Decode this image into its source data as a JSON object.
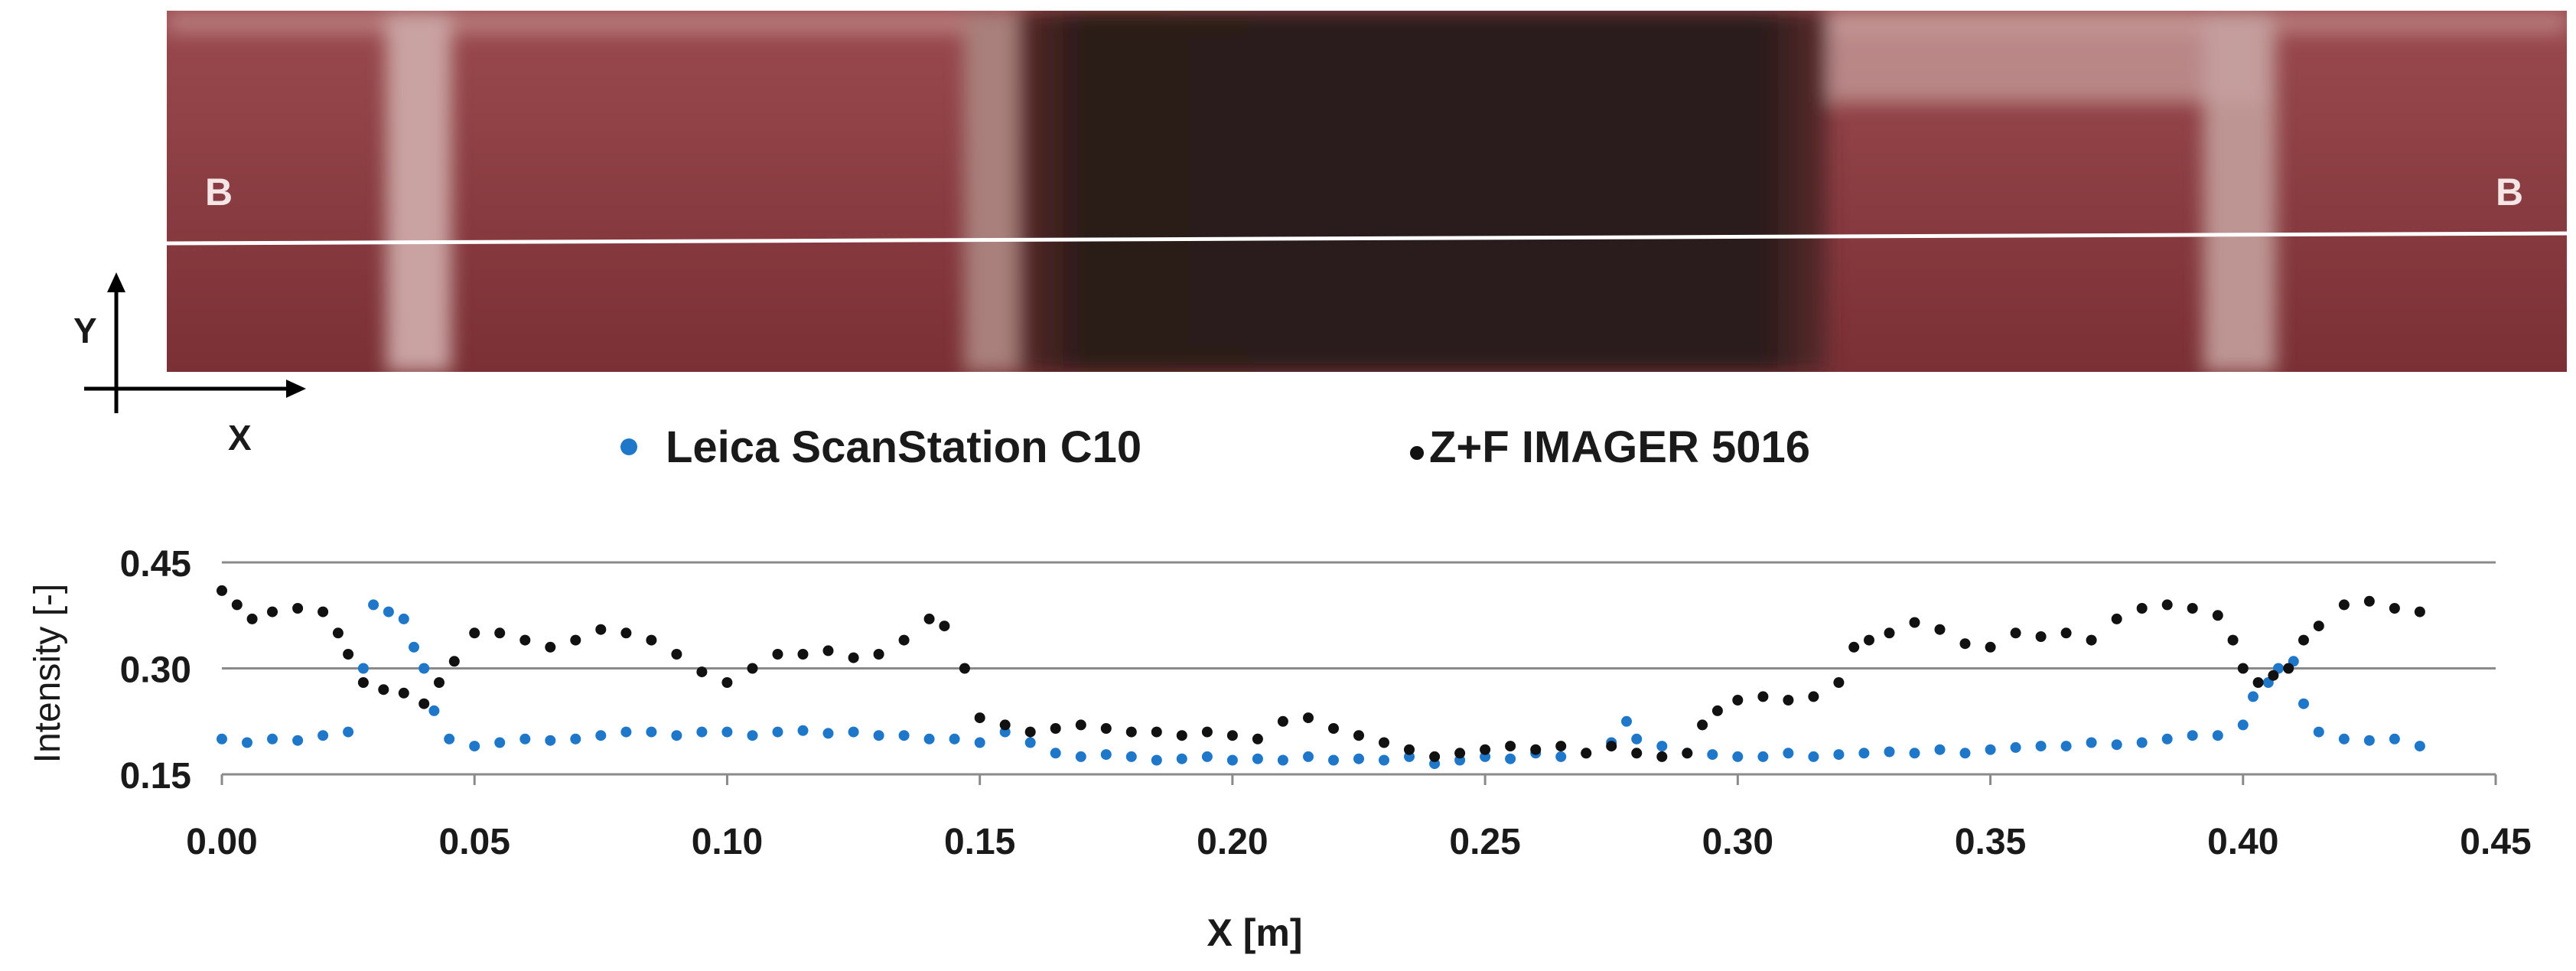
{
  "image_panel": {
    "line_label_left": "B",
    "line_label_right": "B",
    "axis_y": "Y",
    "axis_x": "X",
    "colors": {
      "brick": "#8a3a40",
      "brick_dark": "#6e2a30",
      "mortar": "#c89a98",
      "dark_zone": "#2a1c1a",
      "profile_line": "#ffffff"
    }
  },
  "legend": {
    "entries": [
      {
        "label": "Leica ScanStation C10",
        "color": "#1f77c9"
      },
      {
        "label": "Z+F IMAGER 5016",
        "color": "#111111"
      }
    ]
  },
  "chart_data": {
    "type": "scatter",
    "title": "",
    "xlabel": "X [m]",
    "ylabel": "Intensity  [-]",
    "xlim": [
      0.0,
      0.45
    ],
    "ylim": [
      0.15,
      0.45
    ],
    "xticks": [
      "0.00",
      "0.05",
      "0.10",
      "0.15",
      "0.20",
      "0.25",
      "0.30",
      "0.35",
      "0.40",
      "0.45"
    ],
    "xtick_values": [
      0.0,
      0.05,
      0.1,
      0.15,
      0.2,
      0.25,
      0.3,
      0.35,
      0.4,
      0.45
    ],
    "yticks": [
      "0.15",
      "0.30",
      "0.45"
    ],
    "ytick_values": [
      0.15,
      0.3,
      0.45
    ],
    "grid": true,
    "series": [
      {
        "name": "Leica ScanStation C10",
        "color": "#1f77c9",
        "points": [
          [
            0.0,
            0.2
          ],
          [
            0.005,
            0.195
          ],
          [
            0.01,
            0.2
          ],
          [
            0.015,
            0.198
          ],
          [
            0.02,
            0.205
          ],
          [
            0.025,
            0.21
          ],
          [
            0.028,
            0.3
          ],
          [
            0.03,
            0.39
          ],
          [
            0.033,
            0.38
          ],
          [
            0.036,
            0.37
          ],
          [
            0.038,
            0.33
          ],
          [
            0.04,
            0.3
          ],
          [
            0.042,
            0.24
          ],
          [
            0.045,
            0.2
          ],
          [
            0.05,
            0.19
          ],
          [
            0.055,
            0.195
          ],
          [
            0.06,
            0.2
          ],
          [
            0.065,
            0.198
          ],
          [
            0.07,
            0.2
          ],
          [
            0.075,
            0.205
          ],
          [
            0.08,
            0.21
          ],
          [
            0.085,
            0.21
          ],
          [
            0.09,
            0.205
          ],
          [
            0.095,
            0.21
          ],
          [
            0.1,
            0.21
          ],
          [
            0.105,
            0.205
          ],
          [
            0.11,
            0.21
          ],
          [
            0.115,
            0.212
          ],
          [
            0.12,
            0.208
          ],
          [
            0.125,
            0.21
          ],
          [
            0.13,
            0.205
          ],
          [
            0.135,
            0.205
          ],
          [
            0.14,
            0.2
          ],
          [
            0.145,
            0.2
          ],
          [
            0.15,
            0.195
          ],
          [
            0.155,
            0.21
          ],
          [
            0.16,
            0.195
          ],
          [
            0.165,
            0.18
          ],
          [
            0.17,
            0.175
          ],
          [
            0.175,
            0.178
          ],
          [
            0.18,
            0.175
          ],
          [
            0.185,
            0.17
          ],
          [
            0.19,
            0.172
          ],
          [
            0.195,
            0.175
          ],
          [
            0.2,
            0.17
          ],
          [
            0.205,
            0.172
          ],
          [
            0.21,
            0.17
          ],
          [
            0.215,
            0.175
          ],
          [
            0.22,
            0.17
          ],
          [
            0.225,
            0.172
          ],
          [
            0.23,
            0.17
          ],
          [
            0.235,
            0.175
          ],
          [
            0.24,
            0.165
          ],
          [
            0.245,
            0.17
          ],
          [
            0.25,
            0.175
          ],
          [
            0.255,
            0.172
          ],
          [
            0.26,
            0.18
          ],
          [
            0.265,
            0.175
          ],
          [
            0.27,
            0.18
          ],
          [
            0.275,
            0.195
          ],
          [
            0.278,
            0.225
          ],
          [
            0.28,
            0.2
          ],
          [
            0.285,
            0.19
          ],
          [
            0.29,
            0.18
          ],
          [
            0.295,
            0.178
          ],
          [
            0.3,
            0.175
          ],
          [
            0.305,
            0.175
          ],
          [
            0.31,
            0.18
          ],
          [
            0.315,
            0.175
          ],
          [
            0.32,
            0.178
          ],
          [
            0.325,
            0.18
          ],
          [
            0.33,
            0.182
          ],
          [
            0.335,
            0.18
          ],
          [
            0.34,
            0.185
          ],
          [
            0.345,
            0.18
          ],
          [
            0.35,
            0.185
          ],
          [
            0.355,
            0.188
          ],
          [
            0.36,
            0.19
          ],
          [
            0.365,
            0.19
          ],
          [
            0.37,
            0.195
          ],
          [
            0.375,
            0.192
          ],
          [
            0.38,
            0.195
          ],
          [
            0.385,
            0.2
          ],
          [
            0.39,
            0.205
          ],
          [
            0.395,
            0.205
          ],
          [
            0.4,
            0.22
          ],
          [
            0.402,
            0.26
          ],
          [
            0.405,
            0.28
          ],
          [
            0.407,
            0.3
          ],
          [
            0.41,
            0.31
          ],
          [
            0.412,
            0.25
          ],
          [
            0.415,
            0.21
          ],
          [
            0.42,
            0.2
          ],
          [
            0.425,
            0.198
          ],
          [
            0.43,
            0.2
          ],
          [
            0.435,
            0.19
          ]
        ]
      },
      {
        "name": "Z+F IMAGER 5016",
        "color": "#111111",
        "points": [
          [
            0.0,
            0.41
          ],
          [
            0.003,
            0.39
          ],
          [
            0.006,
            0.37
          ],
          [
            0.01,
            0.38
          ],
          [
            0.015,
            0.385
          ],
          [
            0.02,
            0.38
          ],
          [
            0.023,
            0.35
          ],
          [
            0.025,
            0.32
          ],
          [
            0.028,
            0.28
          ],
          [
            0.032,
            0.27
          ],
          [
            0.036,
            0.265
          ],
          [
            0.04,
            0.25
          ],
          [
            0.043,
            0.28
          ],
          [
            0.046,
            0.31
          ],
          [
            0.05,
            0.35
          ],
          [
            0.055,
            0.35
          ],
          [
            0.06,
            0.34
          ],
          [
            0.065,
            0.33
          ],
          [
            0.07,
            0.34
          ],
          [
            0.075,
            0.355
          ],
          [
            0.08,
            0.35
          ],
          [
            0.085,
            0.34
          ],
          [
            0.09,
            0.32
          ],
          [
            0.095,
            0.295
          ],
          [
            0.1,
            0.28
          ],
          [
            0.105,
            0.3
          ],
          [
            0.11,
            0.32
          ],
          [
            0.115,
            0.32
          ],
          [
            0.12,
            0.325
          ],
          [
            0.125,
            0.315
          ],
          [
            0.13,
            0.32
          ],
          [
            0.135,
            0.34
          ],
          [
            0.14,
            0.37
          ],
          [
            0.143,
            0.36
          ],
          [
            0.147,
            0.3
          ],
          [
            0.15,
            0.23
          ],
          [
            0.155,
            0.22
          ],
          [
            0.16,
            0.21
          ],
          [
            0.165,
            0.215
          ],
          [
            0.17,
            0.22
          ],
          [
            0.175,
            0.215
          ],
          [
            0.18,
            0.21
          ],
          [
            0.185,
            0.21
          ],
          [
            0.19,
            0.205
          ],
          [
            0.195,
            0.21
          ],
          [
            0.2,
            0.205
          ],
          [
            0.205,
            0.2
          ],
          [
            0.21,
            0.225
          ],
          [
            0.215,
            0.23
          ],
          [
            0.22,
            0.215
          ],
          [
            0.225,
            0.205
          ],
          [
            0.23,
            0.195
          ],
          [
            0.235,
            0.185
          ],
          [
            0.24,
            0.175
          ],
          [
            0.245,
            0.18
          ],
          [
            0.25,
            0.185
          ],
          [
            0.255,
            0.19
          ],
          [
            0.26,
            0.185
          ],
          [
            0.265,
            0.19
          ],
          [
            0.27,
            0.18
          ],
          [
            0.275,
            0.19
          ],
          [
            0.28,
            0.18
          ],
          [
            0.285,
            0.175
          ],
          [
            0.29,
            0.18
          ],
          [
            0.293,
            0.22
          ],
          [
            0.296,
            0.24
          ],
          [
            0.3,
            0.255
          ],
          [
            0.305,
            0.26
          ],
          [
            0.31,
            0.255
          ],
          [
            0.315,
            0.26
          ],
          [
            0.32,
            0.28
          ],
          [
            0.323,
            0.33
          ],
          [
            0.326,
            0.34
          ],
          [
            0.33,
            0.35
          ],
          [
            0.335,
            0.365
          ],
          [
            0.34,
            0.355
          ],
          [
            0.345,
            0.335
          ],
          [
            0.35,
            0.33
          ],
          [
            0.355,
            0.35
          ],
          [
            0.36,
            0.345
          ],
          [
            0.365,
            0.35
          ],
          [
            0.37,
            0.34
          ],
          [
            0.375,
            0.37
          ],
          [
            0.38,
            0.385
          ],
          [
            0.385,
            0.39
          ],
          [
            0.39,
            0.385
          ],
          [
            0.395,
            0.375
          ],
          [
            0.398,
            0.34
          ],
          [
            0.4,
            0.3
          ],
          [
            0.403,
            0.28
          ],
          [
            0.406,
            0.29
          ],
          [
            0.409,
            0.3
          ],
          [
            0.412,
            0.34
          ],
          [
            0.415,
            0.36
          ],
          [
            0.42,
            0.39
          ],
          [
            0.425,
            0.395
          ],
          [
            0.43,
            0.385
          ],
          [
            0.435,
            0.38
          ]
        ]
      }
    ]
  }
}
